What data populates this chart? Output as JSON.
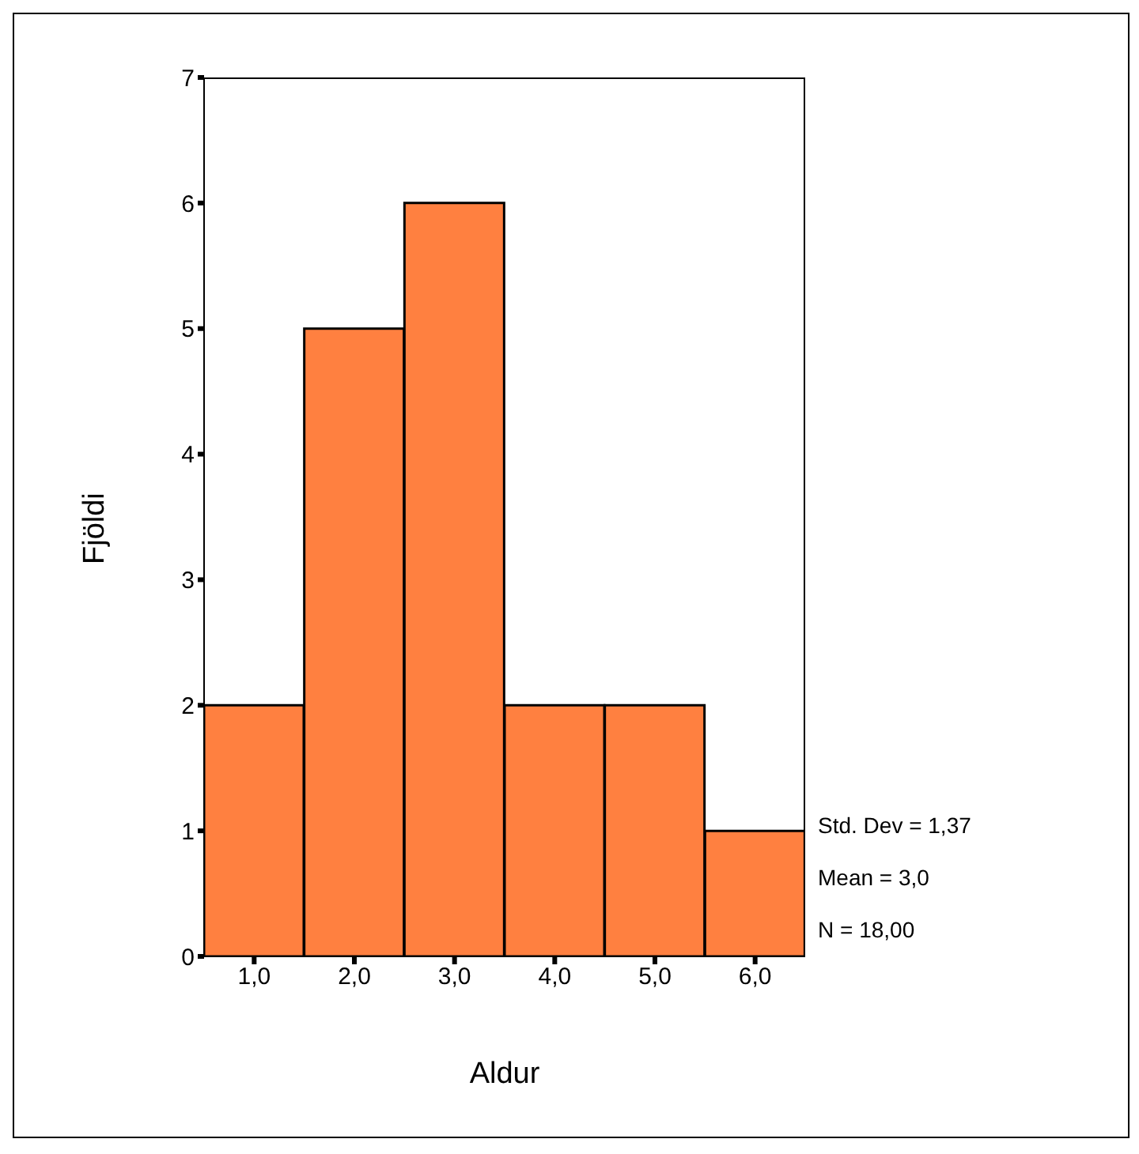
{
  "chart_data": {
    "type": "histogram",
    "xlabel": "Aldur",
    "ylabel": "Fjöldi",
    "bins": [
      0.5,
      1.5,
      2.5,
      3.5,
      4.5,
      5.5,
      6.5
    ],
    "values": [
      2,
      5,
      6,
      2,
      2,
      1
    ],
    "color": "#ff8040",
    "xlim": [
      0.5,
      6.5
    ],
    "xticks": [
      {
        "value": 1,
        "label": "1,0"
      },
      {
        "value": 2,
        "label": "2,0"
      },
      {
        "value": 3,
        "label": "3,0"
      },
      {
        "value": 4,
        "label": "4,0"
      },
      {
        "value": 5,
        "label": "5,0"
      },
      {
        "value": 6,
        "label": "6,0"
      }
    ],
    "ylim": [
      0,
      7
    ],
    "yticks": [
      0,
      1,
      2,
      3,
      4,
      5,
      6,
      7
    ],
    "annotations": [
      "Std. Dev = 1,37",
      "Mean = 3,0",
      "N = 18,00"
    ]
  }
}
